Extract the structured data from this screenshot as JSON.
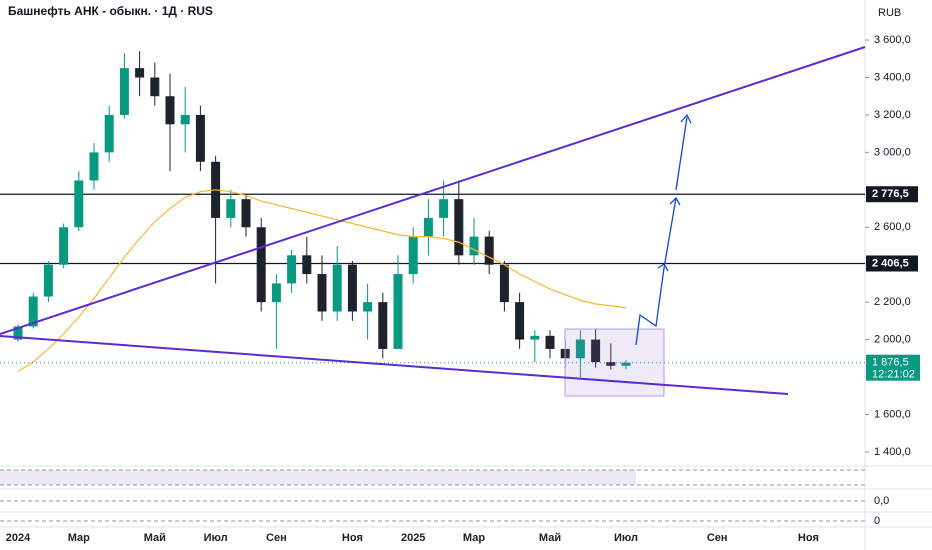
{
  "chart_data": {
    "type": "candlestick",
    "title": "Башнефть АНК - обыкн. · 1Д · RUS",
    "currency": "RUB",
    "categories": [
      "2024",
      null,
      null,
      null,
      "Мар",
      null,
      null,
      null,
      null,
      "Май",
      null,
      null,
      null,
      "Июл",
      null,
      null,
      null,
      "Сен",
      null,
      null,
      null,
      null,
      "Ноя",
      null,
      null,
      null,
      "2025",
      null,
      null,
      null,
      "Мар",
      null,
      null,
      null,
      null,
      "Май",
      null,
      null,
      null,
      null,
      "Июл",
      null,
      null,
      null,
      null,
      null,
      "Сен",
      null,
      null,
      null,
      null,
      null,
      "Ноя"
    ],
    "open": [
      2000,
      2070,
      2230,
      2400,
      2600,
      2850,
      3000,
      3200,
      3450,
      3400,
      3300,
      3150,
      3200,
      2950,
      2650,
      2750,
      2600,
      2200,
      2300,
      2450,
      2350,
      2150,
      2400,
      2150,
      2200,
      1950,
      2350,
      2550,
      2650,
      2750,
      2450,
      2550,
      2400,
      2200,
      2000,
      2020,
      1950,
      1900,
      2000,
      1880,
      1860,
      null,
      null,
      null,
      null,
      null,
      null,
      null,
      null,
      null,
      null,
      null,
      null
    ],
    "high": [
      2080,
      2250,
      2420,
      2620,
      2900,
      3050,
      3250,
      3530,
      3540,
      3480,
      3420,
      3350,
      3250,
      2980,
      2800,
      2780,
      2650,
      2350,
      2480,
      2550,
      2450,
      2500,
      2420,
      2300,
      2250,
      2450,
      2600,
      2750,
      2850,
      2850,
      2650,
      2580,
      2420,
      2250,
      2050,
      2050,
      2000,
      2050,
      2060,
      1980,
      1890,
      null,
      null,
      null,
      null,
      null,
      null,
      null,
      null,
      null,
      null,
      null,
      null
    ],
    "low": [
      1990,
      2060,
      2200,
      2380,
      2580,
      2800,
      2950,
      3180,
      3300,
      3250,
      2900,
      3000,
      2900,
      2300,
      2600,
      2550,
      2150,
      1950,
      2250,
      2300,
      2100,
      2100,
      2100,
      2000,
      1900,
      1950,
      2300,
      2450,
      2550,
      2400,
      2400,
      2350,
      2150,
      1950,
      1880,
      1900,
      1850,
      1800,
      1850,
      1840,
      1840,
      null,
      null,
      null,
      null,
      null,
      null,
      null,
      null,
      null,
      null,
      null,
      null
    ],
    "close": [
      2070,
      2230,
      2400,
      2600,
      2850,
      3000,
      3200,
      3450,
      3400,
      3300,
      3150,
      3200,
      2950,
      2650,
      2750,
      2600,
      2200,
      2300,
      2450,
      2350,
      2150,
      2400,
      2150,
      2200,
      1950,
      2350,
      2550,
      2650,
      2750,
      2450,
      2550,
      2400,
      2200,
      2000,
      2020,
      1950,
      1900,
      2000,
      1880,
      1860,
      1876.5,
      null,
      null,
      null,
      null,
      null,
      null,
      null,
      null,
      null,
      null,
      null,
      null
    ],
    "ma": [
      1830,
      1880,
      1950,
      2030,
      2120,
      2220,
      2330,
      2440,
      2540,
      2630,
      2700,
      2760,
      2790,
      2800,
      2790,
      2770,
      2740,
      2720,
      2700,
      2680,
      2660,
      2640,
      2620,
      2600,
      2580,
      2560,
      2550,
      2550,
      2540,
      2520,
      2480,
      2440,
      2400,
      2350,
      2310,
      2270,
      2240,
      2210,
      2190,
      2180,
      2170,
      null,
      null,
      null,
      null,
      null,
      null,
      null,
      null,
      null,
      null,
      null,
      null
    ],
    "up_color": "#089981",
    "down_color": "#1e222d",
    "ma_color": "#f7b731",
    "ylim": [
      1330,
      3814
    ],
    "yticks": [
      {
        "value": 1400,
        "label": "1 400,0"
      },
      {
        "value": 1600,
        "label": "1 600,0"
      },
      {
        "value": 2000,
        "label": "2 000,0"
      },
      {
        "value": 2200,
        "label": "2 200,0"
      },
      {
        "value": 2600,
        "label": "2 600,0"
      },
      {
        "value": 3000,
        "label": "3 000,0"
      },
      {
        "value": 3200,
        "label": "3 200,0"
      },
      {
        "value": 3400,
        "label": "3 400,0"
      },
      {
        "value": 3600,
        "label": "3 600,0"
      }
    ],
    "levels": [
      {
        "value": 2776.5,
        "label": "2 776,5"
      },
      {
        "value": 2406.5,
        "label": "2 406,5"
      }
    ],
    "last_label": "1 876,5",
    "timer": "12:21:02",
    "indicator_ticks": [
      "0,0",
      "0"
    ]
  }
}
